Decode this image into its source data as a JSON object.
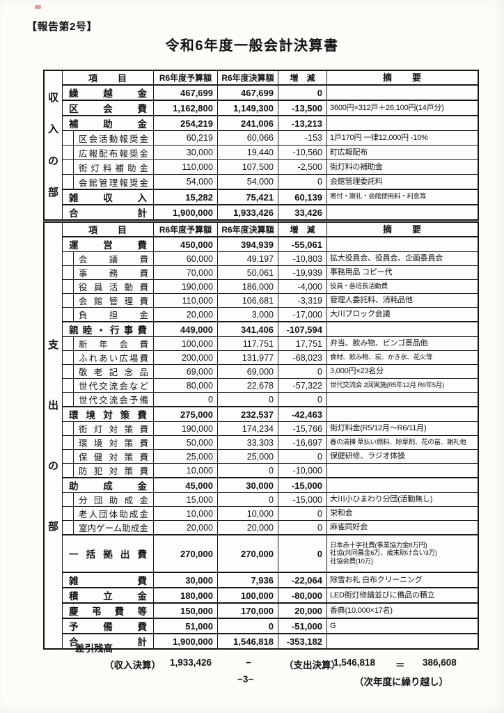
{
  "page": {
    "report_no": "【報告第2号】",
    "title": "令和6年度一般会計決算書",
    "page_number": "−3−"
  },
  "columns": {
    "item": "項　　目",
    "budget": "R6年度予算額",
    "settlement": "R6年度決算額",
    "change": "増　減",
    "remarks": "摘　　要"
  },
  "income": {
    "section_label": "収入の部",
    "rows": [
      {
        "name": "繰越金",
        "level": "main",
        "budget": "467,699",
        "settlement": "467,699",
        "change": "0",
        "remarks": ""
      },
      {
        "name": "区会費",
        "level": "main",
        "thick_top": true,
        "budget": "1,162,800",
        "settlement": "1,149,300",
        "change": "-13,500",
        "remarks": "3600円×312戸＋26,100円(14戸分)"
      },
      {
        "name": "補助金",
        "level": "main",
        "thick_top": true,
        "budget": "254,219",
        "settlement": "241,006",
        "change": "-13,213",
        "remarks": ""
      },
      {
        "name": "区会活動報奨金",
        "level": "sub",
        "budget": "60,219",
        "settlement": "60,066",
        "change": "-153",
        "remarks": "1戸170円 一律12,000円 -10%"
      },
      {
        "name": "広報配布報奨金",
        "level": "sub",
        "budget": "30,000",
        "settlement": "19,440",
        "change": "-10,560",
        "remarks": "町広報配布"
      },
      {
        "name": "街灯料補助金",
        "level": "sub",
        "budget": "110,000",
        "settlement": "107,500",
        "change": "-2,500",
        "remarks": "街灯料の補助金"
      },
      {
        "name": "会館管理報奨金",
        "level": "sub",
        "budget": "54,000",
        "settlement": "54,000",
        "change": "0",
        "remarks": "会館管理委託料"
      },
      {
        "name": "雑収入",
        "level": "main",
        "thick_top": true,
        "budget": "15,282",
        "settlement": "75,421",
        "change": "60,139",
        "remarks": "寄付・謝礼・会館使用料・利息等",
        "remarks_small": true
      },
      {
        "name": "合計",
        "level": "total",
        "thick_top": true,
        "budget": "1,900,000",
        "settlement": "1,933,426",
        "change": "33,426",
        "remarks": ""
      }
    ]
  },
  "expenditure": {
    "section_label": "支出の部",
    "rows": [
      {
        "name": "運営費",
        "level": "main",
        "budget": "450,000",
        "settlement": "394,939",
        "change": "-55,061",
        "remarks": ""
      },
      {
        "name": "会議費",
        "level": "sub",
        "budget": "60,000",
        "settlement": "49,197",
        "change": "-10,803",
        "remarks": "拡大役員会、役員会、企画委員会"
      },
      {
        "name": "事務費",
        "level": "sub",
        "budget": "70,000",
        "settlement": "50,061",
        "change": "-19,939",
        "remarks": "事務用品 コピー代"
      },
      {
        "name": "役員活動費",
        "level": "sub",
        "budget": "190,000",
        "settlement": "186,000",
        "change": "-4,000",
        "remarks": "役員・各班長活動費",
        "remarks_small": true
      },
      {
        "name": "会館管理費",
        "level": "sub",
        "budget": "110,000",
        "settlement": "106,681",
        "change": "-3,319",
        "remarks": "管理人委託料、消耗品他"
      },
      {
        "name": "負担金",
        "level": "sub",
        "budget": "20,000",
        "settlement": "3,000",
        "change": "-17,000",
        "remarks": "大川ブロック会議"
      },
      {
        "name": "親睦・行事費",
        "level": "main",
        "thick_top": true,
        "budget": "449,000",
        "settlement": "341,406",
        "change": "-107,594",
        "remarks": ""
      },
      {
        "name": "新年会費",
        "level": "sub",
        "budget": "100,000",
        "settlement": "117,751",
        "change": "17,751",
        "remarks": "弁当、飲み物、ビンゴ景品他"
      },
      {
        "name": "ふれあい広場費",
        "level": "sub",
        "budget": "200,000",
        "settlement": "131,977",
        "change": "-68,023",
        "remarks": "食材、飲み物、炭、かき氷、花火等",
        "remarks_small": true
      },
      {
        "name": "敬老記念品",
        "level": "sub",
        "budget": "69,000",
        "settlement": "69,000",
        "change": "0",
        "remarks": "3,000円×23名分"
      },
      {
        "name": "世代交流会など",
        "level": "sub",
        "budget": "80,000",
        "settlement": "22,678",
        "change": "-57,322",
        "remarks": "世代交流会 2回実施(R5年12月 R6年5月)",
        "remarks_small": true
      },
      {
        "name": "世代交流会予備",
        "level": "sub",
        "budget": "0",
        "settlement": "0",
        "change": "0",
        "remarks": ""
      },
      {
        "name": "環境対策費",
        "level": "main",
        "thick_top": true,
        "budget": "275,000",
        "settlement": "232,537",
        "change": "-42,463",
        "remarks": ""
      },
      {
        "name": "街灯対策費",
        "level": "sub",
        "budget": "190,000",
        "settlement": "174,234",
        "change": "-15,766",
        "remarks": "街灯料金(R5/12月～R6/11月)"
      },
      {
        "name": "環境対策費",
        "level": "sub",
        "budget": "50,000",
        "settlement": "33,303",
        "change": "-16,697",
        "remarks": "春の清掃 草払い燃料、除草剤、花の苗、謝礼他",
        "remarks_small": true
      },
      {
        "name": "保健対策費",
        "level": "sub",
        "budget": "25,000",
        "settlement": "25,000",
        "change": "0",
        "remarks": "保健研修、ラジオ体操"
      },
      {
        "name": "防犯対策費",
        "level": "sub",
        "budget": "10,000",
        "settlement": "0",
        "change": "-10,000",
        "remarks": ""
      },
      {
        "name": "助成金",
        "level": "main",
        "thick_top": true,
        "budget": "45,000",
        "settlement": "30,000",
        "change": "-15,000",
        "remarks": ""
      },
      {
        "name": "分団助成金",
        "level": "sub",
        "budget": "15,000",
        "settlement": "0",
        "change": "-15,000",
        "remarks": "大川小ひまわり分団(活動無し)"
      },
      {
        "name": "老人団体助成金",
        "level": "sub",
        "budget": "10,000",
        "settlement": "10,000",
        "change": "0",
        "remarks": "栄和会"
      },
      {
        "name": "室内ゲーム助成金",
        "level": "sub",
        "budget": "20,000",
        "settlement": "20,000",
        "change": "0",
        "remarks": "麻雀同好会"
      },
      {
        "name": "一括拠出費",
        "level": "main",
        "thick_top": true,
        "budget": "270,000",
        "settlement": "270,000",
        "change": "0",
        "remarks": "日本赤十字社費(事業協力金8万円)\n社協(共同募金6万、歳末助け合い3万)\n社協会費(10万)",
        "remarks_small": true
      },
      {
        "name": "雑費",
        "level": "main",
        "thick_top": true,
        "budget": "30,000",
        "settlement": "7,936",
        "change": "-22,064",
        "remarks": "除雪お礼 白布クリーニング"
      },
      {
        "name": "積立金",
        "level": "main",
        "thick_top": true,
        "budget": "180,000",
        "settlement": "100,000",
        "change": "-80,000",
        "remarks": "LED街灯修繕並びに備品の積立"
      },
      {
        "name": "慶弔費等",
        "level": "main",
        "thick_top": true,
        "budget": "150,000",
        "settlement": "170,000",
        "change": "20,000",
        "remarks": "香典(10,000×17名)"
      },
      {
        "name": "予備費",
        "level": "main",
        "thick_top": true,
        "budget": "51,000",
        "settlement": "0",
        "change": "-51,000",
        "remarks": "G"
      },
      {
        "name": "合計",
        "level": "total",
        "thick_top": true,
        "budget": "1,900,000",
        "settlement": "1,546,818",
        "change": "-353,182",
        "remarks": ""
      }
    ]
  },
  "summary": {
    "label": "差引残高",
    "income_label": "（収入決算）",
    "income_value": "1,933,426",
    "minus": "−",
    "expense_label": "（支出決算）",
    "expense_value": "1,546,818",
    "equals": "＝",
    "balance": "386,608",
    "carryover_note": "（次年度に繰り越し）"
  }
}
